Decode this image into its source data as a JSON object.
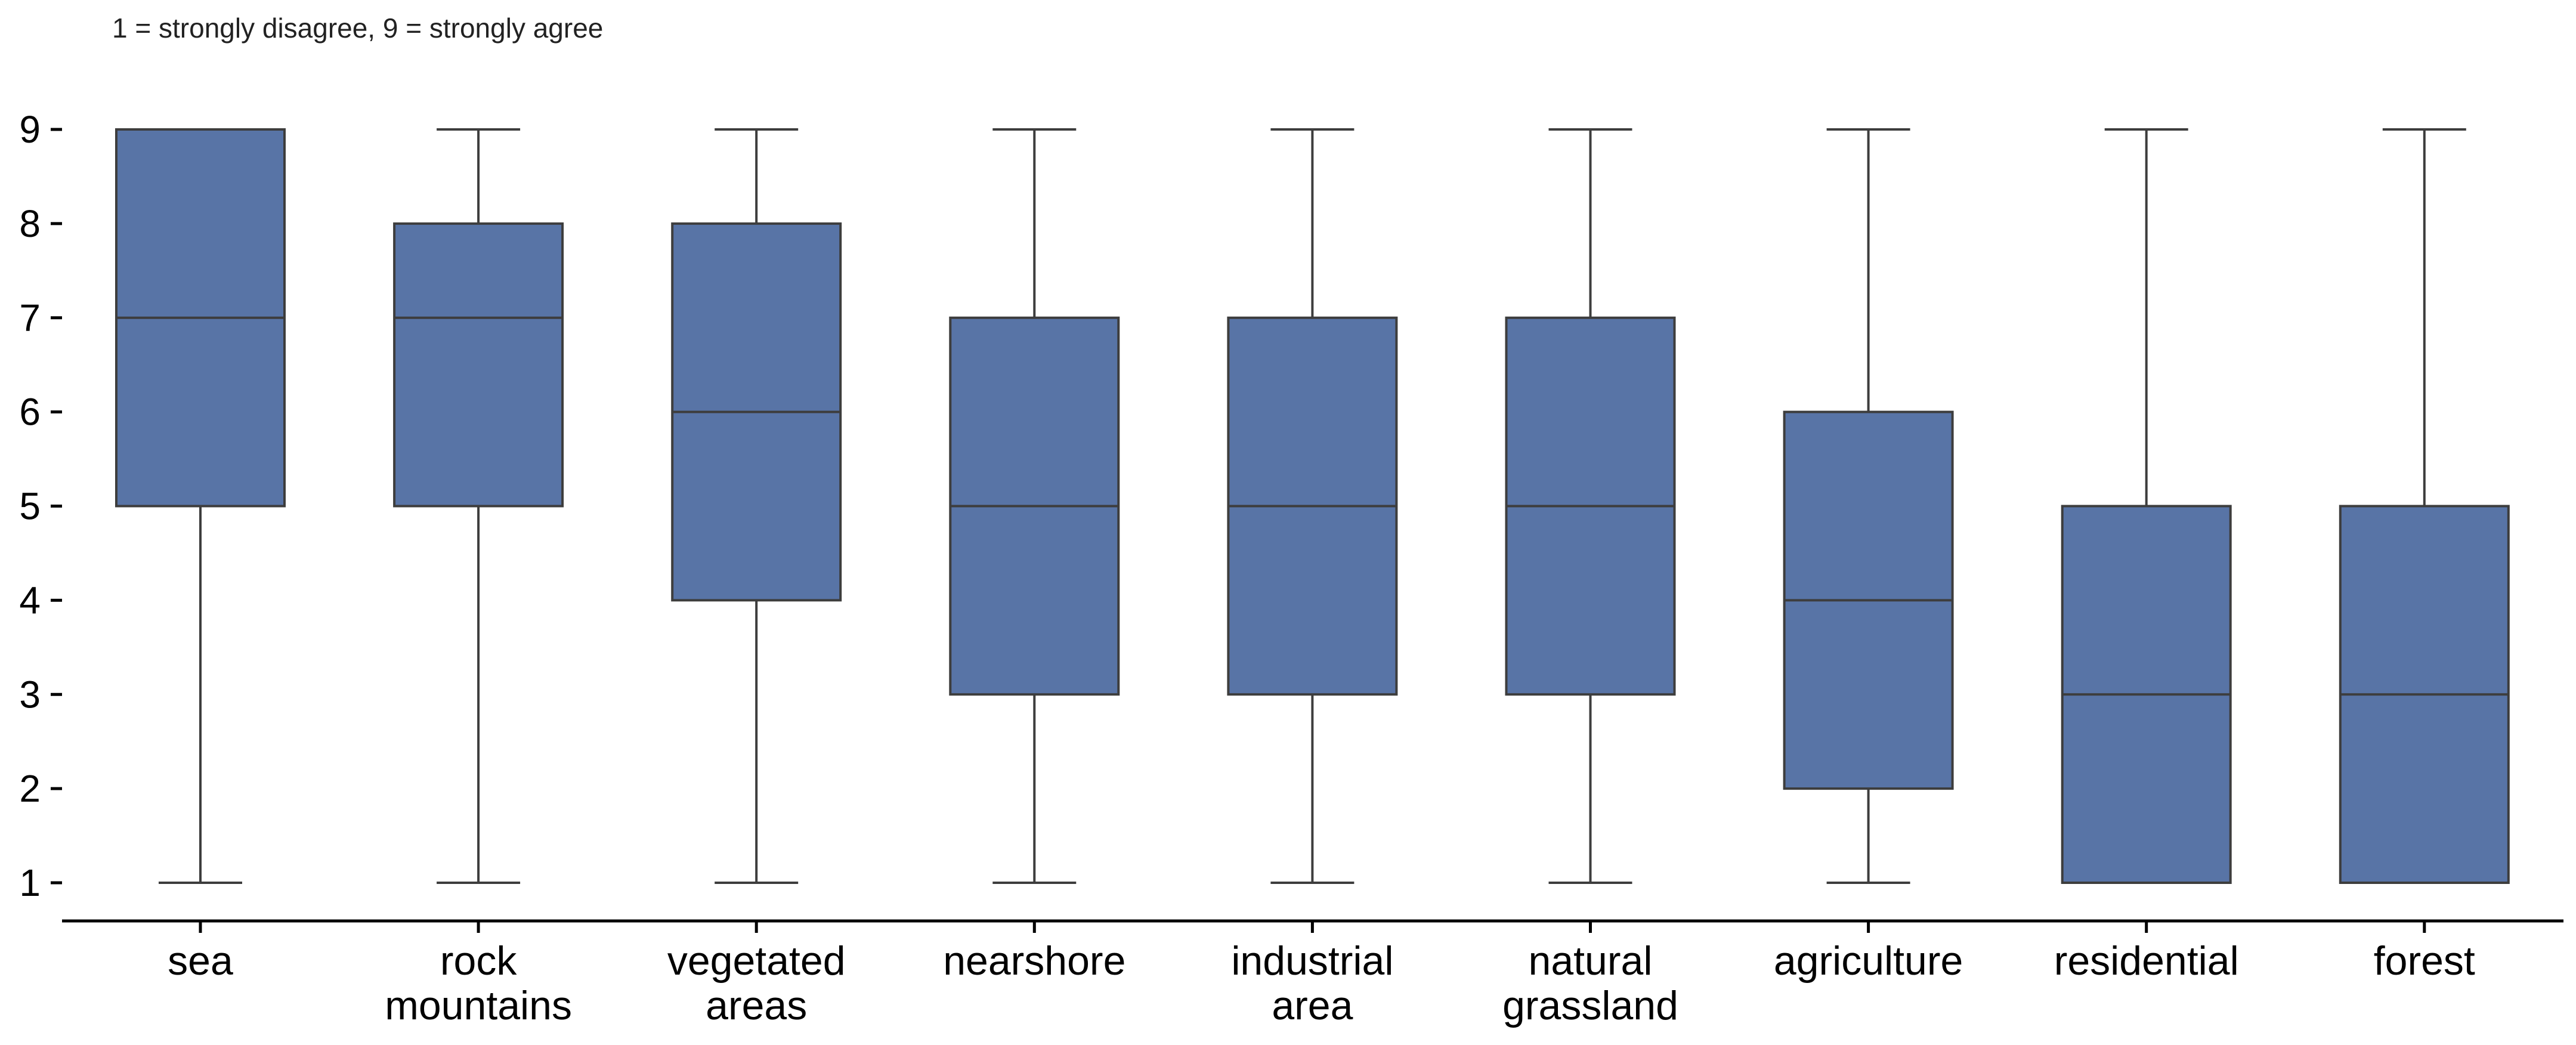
{
  "note": "1 = strongly disagree, 9 = strongly agree",
  "colors": {
    "box_fill": "#5874a6",
    "box_edge": "#3d3d3d",
    "axis": "#000000"
  },
  "chart_data": {
    "type": "box",
    "title": "",
    "xlabel": "",
    "ylabel": "",
    "ylim": [
      1,
      9
    ],
    "yticks": [
      1,
      2,
      3,
      4,
      5,
      6,
      7,
      8,
      9
    ],
    "grid": false,
    "categories": [
      {
        "label": [
          "sea"
        ],
        "whisker_low": 1,
        "q1": 5,
        "median": 7,
        "q3": 9,
        "whisker_high": 9
      },
      {
        "label": [
          "rock",
          "mountains"
        ],
        "whisker_low": 1,
        "q1": 5,
        "median": 7,
        "q3": 8,
        "whisker_high": 9
      },
      {
        "label": [
          "vegetated",
          "areas"
        ],
        "whisker_low": 1,
        "q1": 4,
        "median": 6,
        "q3": 8,
        "whisker_high": 9
      },
      {
        "label": [
          "nearshore"
        ],
        "whisker_low": 1,
        "q1": 3,
        "median": 5,
        "q3": 7,
        "whisker_high": 9
      },
      {
        "label": [
          "industrial",
          "area"
        ],
        "whisker_low": 1,
        "q1": 3,
        "median": 5,
        "q3": 7,
        "whisker_high": 9
      },
      {
        "label": [
          "natural",
          "grassland"
        ],
        "whisker_low": 1,
        "q1": 3,
        "median": 5,
        "q3": 7,
        "whisker_high": 9
      },
      {
        "label": [
          "agriculture"
        ],
        "whisker_low": 1,
        "q1": 2,
        "median": 4,
        "q3": 6,
        "whisker_high": 9
      },
      {
        "label": [
          "residential"
        ],
        "whisker_low": 1,
        "q1": 1,
        "median": 3,
        "q3": 5,
        "whisker_high": 9
      },
      {
        "label": [
          "forest"
        ],
        "whisker_low": 1,
        "q1": 1,
        "median": 3,
        "q3": 5,
        "whisker_high": 9
      }
    ]
  }
}
